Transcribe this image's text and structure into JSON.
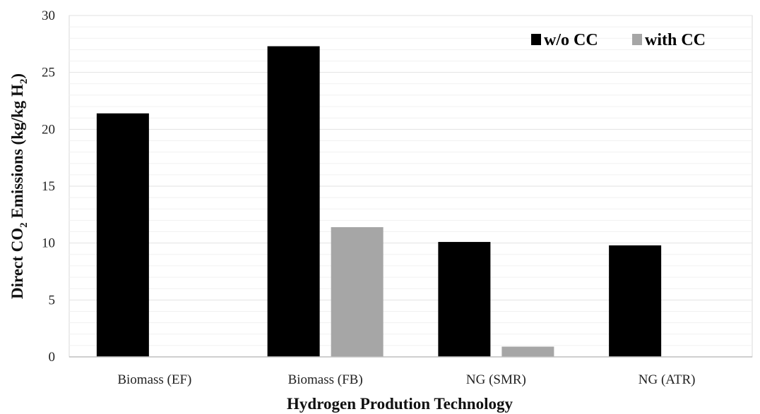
{
  "chart_data": {
    "type": "bar",
    "categories": [
      "Biomass (EF)",
      "Biomass (FB)",
      "NG (SMR)",
      "NG (ATR)"
    ],
    "series": [
      {
        "name": "w/o CC",
        "values": [
          21.4,
          27.3,
          10.1,
          9.8
        ],
        "color": "#000000"
      },
      {
        "name": "with CC",
        "values": [
          0,
          11.4,
          0.9,
          0
        ],
        "color": "#a6a6a6"
      }
    ],
    "yticks": [
      "0",
      "5",
      "10",
      "15",
      "20",
      "25",
      "30"
    ],
    "ylim": [
      0,
      30
    ],
    "ylabel_parts": [
      "Direct CO",
      "2",
      " Emissions (kg/kg H",
      "2",
      ")"
    ],
    "xlabel": "Hydrogen Prodution Technology",
    "grid": true,
    "legend_position": "top-right"
  }
}
